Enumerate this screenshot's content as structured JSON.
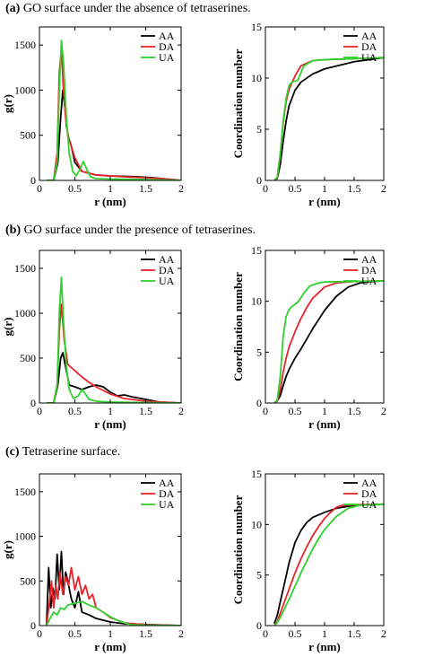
{
  "sections": [
    {
      "letter": "(a)",
      "title": "GO surface under the absence of tetraserines."
    },
    {
      "letter": "(b)",
      "title": "GO surface under the presence of tetraserines."
    },
    {
      "letter": "(c)",
      "title": "Tetraserine surface."
    }
  ],
  "colors": {
    "AA": "#000000",
    "DA": "#e8232a",
    "UA": "#2fd12b"
  },
  "chart_data": [
    {
      "type": "line",
      "panel": "a-left",
      "xlabel": "r (nm)",
      "ylabel": "g(r)",
      "xlim": [
        0,
        2
      ],
      "ylim": [
        0,
        1700
      ],
      "xticks": [
        0,
        0.5,
        1,
        1.5,
        2
      ],
      "xticklabels": [
        "0",
        "0.5",
        "1",
        "1.5",
        "2"
      ],
      "yticks": [
        0,
        500,
        1000,
        1500
      ],
      "yticklabels": [
        "0",
        "500",
        "1000",
        "1500"
      ],
      "legend": "top-right",
      "series": [
        {
          "name": "AA",
          "x": [
            0.1,
            0.2,
            0.26,
            0.3,
            0.33,
            0.36,
            0.4,
            0.45,
            0.5,
            0.6,
            0.8,
            1.0,
            1.2,
            1.4,
            1.6,
            1.8,
            2.0
          ],
          "y": [
            0,
            0,
            200,
            700,
            1000,
            800,
            500,
            380,
            200,
            100,
            60,
            50,
            45,
            40,
            30,
            15,
            0
          ]
        },
        {
          "name": "DA",
          "x": [
            0.1,
            0.2,
            0.25,
            0.28,
            0.31,
            0.34,
            0.38,
            0.42,
            0.5,
            0.6,
            0.8,
            1.0,
            1.2,
            1.5,
            1.8,
            2.0
          ],
          "y": [
            0,
            0,
            300,
            1200,
            1450,
            1000,
            600,
            450,
            250,
            100,
            60,
            50,
            40,
            30,
            15,
            0
          ]
        },
        {
          "name": "UA",
          "x": [
            0.1,
            0.2,
            0.25,
            0.28,
            0.31,
            0.34,
            0.38,
            0.42,
            0.47,
            0.52,
            0.57,
            0.62,
            0.67,
            0.72,
            0.8,
            1.0,
            1.5,
            2.0
          ],
          "y": [
            0,
            0,
            200,
            1000,
            1550,
            1300,
            700,
            300,
            100,
            50,
            120,
            210,
            120,
            40,
            20,
            15,
            10,
            0
          ]
        }
      ]
    },
    {
      "type": "line",
      "panel": "a-right",
      "xlabel": "r (nm)",
      "ylabel": "Coordination number",
      "xlim": [
        0,
        2
      ],
      "ylim": [
        0,
        15
      ],
      "xticks": [
        0,
        0.5,
        1,
        1.5,
        2
      ],
      "xticklabels": [
        "0",
        "0.5",
        "1",
        "1.5",
        "2"
      ],
      "yticks": [
        0,
        5,
        10,
        15
      ],
      "yticklabels": [
        "0",
        "5",
        "10",
        "15"
      ],
      "legend": "top-right",
      "series": [
        {
          "name": "AA",
          "x": [
            0.15,
            0.2,
            0.25,
            0.3,
            0.35,
            0.4,
            0.5,
            0.6,
            0.8,
            1.0,
            1.5,
            2.0
          ],
          "y": [
            0,
            0.2,
            1.5,
            3.8,
            5.8,
            7.3,
            8.8,
            9.6,
            10.4,
            10.9,
            11.6,
            12.0
          ]
        },
        {
          "name": "DA",
          "x": [
            0.15,
            0.2,
            0.25,
            0.3,
            0.35,
            0.4,
            0.5,
            0.6,
            0.8,
            1.0,
            1.5,
            2.0
          ],
          "y": [
            0,
            0.3,
            2.5,
            5.6,
            7.7,
            8.9,
            10.2,
            11.2,
            11.7,
            11.8,
            11.9,
            12.0
          ]
        },
        {
          "name": "UA",
          "x": [
            0.15,
            0.2,
            0.25,
            0.3,
            0.35,
            0.4,
            0.45,
            0.55,
            0.65,
            0.8,
            1.0,
            1.5,
            2.0
          ],
          "y": [
            0,
            0.3,
            2.5,
            5.8,
            8.0,
            9.3,
            9.6,
            9.8,
            11.2,
            11.7,
            11.8,
            11.9,
            12.0
          ]
        }
      ]
    },
    {
      "type": "line",
      "panel": "b-left",
      "xlabel": "r (nm)",
      "ylabel": "g(r)",
      "xlim": [
        0,
        2
      ],
      "ylim": [
        0,
        1700
      ],
      "xticks": [
        0,
        0.5,
        1,
        1.5,
        2
      ],
      "xticklabels": [
        "0",
        "0.5",
        "1",
        "1.5",
        "2"
      ],
      "yticks": [
        0,
        500,
        1000,
        1500
      ],
      "yticklabels": [
        "0",
        "500",
        "1000",
        "1500"
      ],
      "legend": "top-right",
      "series": [
        {
          "name": "AA",
          "x": [
            0.1,
            0.2,
            0.26,
            0.3,
            0.33,
            0.37,
            0.42,
            0.5,
            0.6,
            0.7,
            0.8,
            0.9,
            1.0,
            1.1,
            1.2,
            1.3,
            1.5,
            1.7,
            2.0
          ],
          "y": [
            0,
            0,
            200,
            500,
            560,
            400,
            200,
            180,
            150,
            180,
            200,
            180,
            120,
            80,
            90,
            70,
            40,
            10,
            0
          ]
        },
        {
          "name": "DA",
          "x": [
            0.1,
            0.2,
            0.25,
            0.28,
            0.31,
            0.35,
            0.4,
            0.5,
            0.6,
            0.7,
            0.8,
            0.9,
            1.0,
            1.2,
            1.5,
            2.0
          ],
          "y": [
            0,
            0,
            200,
            800,
            1100,
            700,
            430,
            360,
            290,
            230,
            180,
            140,
            100,
            50,
            20,
            0
          ]
        },
        {
          "name": "UA",
          "x": [
            0.1,
            0.2,
            0.25,
            0.28,
            0.31,
            0.34,
            0.38,
            0.42,
            0.48,
            0.55,
            0.6,
            0.65,
            0.7,
            0.8,
            1.0,
            1.5,
            2.0
          ],
          "y": [
            0,
            0,
            200,
            1000,
            1400,
            900,
            400,
            150,
            50,
            80,
            150,
            100,
            40,
            20,
            10,
            5,
            0
          ]
        }
      ]
    },
    {
      "type": "line",
      "panel": "b-right",
      "xlabel": "r (nm)",
      "ylabel": "Coordination number",
      "xlim": [
        0,
        2
      ],
      "ylim": [
        0,
        15
      ],
      "xticks": [
        0,
        0.5,
        1,
        1.5,
        2
      ],
      "xticklabels": [
        "0",
        "0.5",
        "1",
        "1.5",
        "2"
      ],
      "yticks": [
        0,
        5,
        10,
        15
      ],
      "yticklabels": [
        "0",
        "5",
        "10",
        "15"
      ],
      "legend": "top-right",
      "series": [
        {
          "name": "AA",
          "x": [
            0.15,
            0.2,
            0.25,
            0.3,
            0.35,
            0.4,
            0.5,
            0.6,
            0.7,
            0.8,
            1.0,
            1.2,
            1.4,
            1.6,
            1.8,
            2.0
          ],
          "y": [
            0,
            0.2,
            0.7,
            1.7,
            2.6,
            3.3,
            4.4,
            5.3,
            6.3,
            7.3,
            9.1,
            10.5,
            11.4,
            11.8,
            11.95,
            12.0
          ]
        },
        {
          "name": "DA",
          "x": [
            0.15,
            0.2,
            0.25,
            0.3,
            0.35,
            0.4,
            0.5,
            0.6,
            0.7,
            0.8,
            1.0,
            1.2,
            1.5,
            2.0
          ],
          "y": [
            0,
            0.2,
            1.2,
            3.0,
            4.4,
            5.5,
            7.0,
            8.3,
            9.4,
            10.3,
            11.4,
            11.8,
            11.95,
            12.0
          ]
        },
        {
          "name": "UA",
          "x": [
            0.15,
            0.2,
            0.25,
            0.3,
            0.35,
            0.4,
            0.45,
            0.55,
            0.65,
            0.75,
            0.9,
            1.0,
            1.5,
            2.0
          ],
          "y": [
            0,
            0.3,
            2.5,
            6.5,
            8.5,
            9.2,
            9.5,
            9.9,
            10.8,
            11.5,
            11.8,
            11.9,
            11.95,
            12.0
          ]
        }
      ]
    },
    {
      "type": "line",
      "panel": "c-left",
      "xlabel": "r (nm)",
      "ylabel": "g(r)",
      "xlim": [
        0,
        2
      ],
      "ylim": [
        0,
        1700
      ],
      "xticks": [
        0,
        0.5,
        1,
        1.5,
        2
      ],
      "xticklabels": [
        "0",
        "0.5",
        "1",
        "1.5",
        "2"
      ],
      "yticks": [
        0,
        500,
        1000,
        1500
      ],
      "yticklabels": [
        "0",
        "500",
        "1000",
        "1500"
      ],
      "legend": "top-right",
      "series": [
        {
          "name": "AA",
          "x": [
            0.1,
            0.13,
            0.16,
            0.19,
            0.22,
            0.25,
            0.28,
            0.31,
            0.34,
            0.37,
            0.4,
            0.45,
            0.5,
            0.55,
            0.6,
            0.7,
            0.8,
            0.9,
            1.0,
            1.2,
            1.4,
            1.6,
            2.0
          ],
          "y": [
            0,
            650,
            200,
            420,
            300,
            800,
            400,
            830,
            350,
            600,
            500,
            300,
            200,
            380,
            150,
            120,
            80,
            60,
            40,
            20,
            15,
            10,
            0
          ]
        },
        {
          "name": "DA",
          "x": [
            0.1,
            0.14,
            0.17,
            0.2,
            0.23,
            0.26,
            0.29,
            0.33,
            0.37,
            0.41,
            0.45,
            0.5,
            0.55,
            0.6,
            0.65,
            0.7,
            0.75,
            0.8,
            0.9,
            1.0,
            1.2,
            1.5,
            2.0
          ],
          "y": [
            0,
            250,
            500,
            200,
            450,
            300,
            600,
            350,
            550,
            450,
            650,
            400,
            550,
            350,
            450,
            300,
            350,
            200,
            150,
            90,
            30,
            10,
            0
          ]
        },
        {
          "name": "UA",
          "x": [
            0.1,
            0.15,
            0.2,
            0.25,
            0.3,
            0.35,
            0.4,
            0.5,
            0.6,
            0.7,
            0.8,
            0.9,
            1.0,
            1.1,
            1.2,
            1.3,
            1.5,
            2.0
          ],
          "y": [
            0,
            80,
            150,
            120,
            200,
            180,
            230,
            250,
            270,
            230,
            200,
            150,
            100,
            60,
            30,
            10,
            5,
            0
          ]
        }
      ]
    },
    {
      "type": "line",
      "panel": "c-right",
      "xlabel": "r (nm)",
      "ylabel": "Coordination number",
      "xlim": [
        0,
        2
      ],
      "ylim": [
        0,
        15
      ],
      "xticks": [
        0,
        0.5,
        1,
        1.5,
        2
      ],
      "xticklabels": [
        "0",
        "0.5",
        "1",
        "1.5",
        "2"
      ],
      "yticks": [
        0,
        5,
        10,
        15
      ],
      "yticklabels": [
        "0",
        "5",
        "10",
        "15"
      ],
      "legend": "top-right",
      "series": [
        {
          "name": "AA",
          "x": [
            0.15,
            0.2,
            0.25,
            0.3,
            0.35,
            0.4,
            0.5,
            0.6,
            0.7,
            0.8,
            1.0,
            1.2,
            1.5,
            2.0
          ],
          "y": [
            0.2,
            1.0,
            2.3,
            3.6,
            4.9,
            6.2,
            8.2,
            9.4,
            10.2,
            10.7,
            11.2,
            11.6,
            11.9,
            12.0
          ]
        },
        {
          "name": "DA",
          "x": [
            0.15,
            0.2,
            0.25,
            0.3,
            0.35,
            0.4,
            0.5,
            0.6,
            0.7,
            0.8,
            0.9,
            1.0,
            1.1,
            1.2,
            1.3,
            1.5,
            2.0
          ],
          "y": [
            0,
            0.4,
            1.2,
            2.0,
            2.8,
            3.6,
            5.2,
            6.6,
            7.8,
            8.9,
            9.8,
            10.6,
            11.2,
            11.7,
            11.9,
            11.95,
            12.0
          ]
        },
        {
          "name": "UA",
          "x": [
            0.15,
            0.2,
            0.25,
            0.3,
            0.35,
            0.4,
            0.5,
            0.6,
            0.7,
            0.8,
            0.9,
            1.0,
            1.2,
            1.4,
            1.6,
            2.0
          ],
          "y": [
            0,
            0.3,
            0.8,
            1.4,
            2.0,
            2.6,
            3.9,
            5.2,
            6.4,
            7.6,
            8.6,
            9.5,
            10.8,
            11.6,
            11.9,
            12.0
          ]
        }
      ]
    }
  ]
}
